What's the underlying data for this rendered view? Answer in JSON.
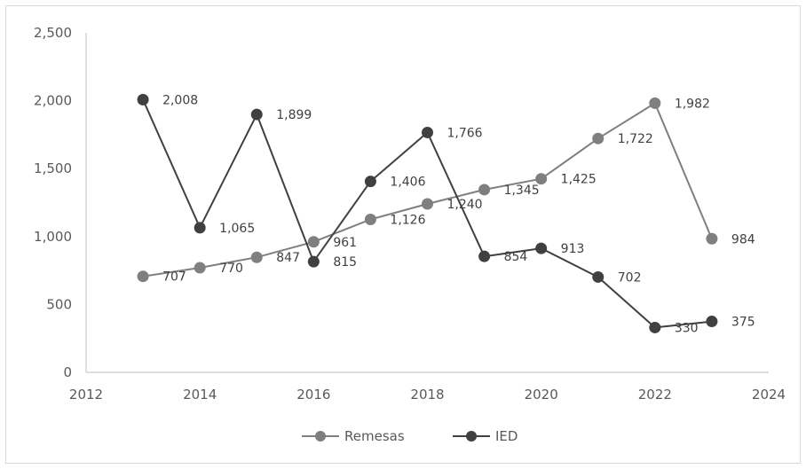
{
  "chart_data": {
    "type": "line",
    "title": "",
    "xlabel": "",
    "ylabel": "",
    "xlim": [
      2012,
      2024
    ],
    "ylim": [
      0,
      2500
    ],
    "x_ticks": [
      "2012",
      "2014",
      "2016",
      "2018",
      "2020",
      "2022",
      "2024"
    ],
    "y_ticks": [
      "0",
      "500",
      "1,000",
      "1,500",
      "2,000",
      "2,500"
    ],
    "grid": false,
    "legend_position": "bottom",
    "x": [
      2013,
      2014,
      2015,
      2016,
      2017,
      2018,
      2019,
      2020,
      2021,
      2022,
      2023
    ],
    "series": [
      {
        "name": "Remesas",
        "color": "#7f7f7f",
        "values": [
          707,
          770,
          847,
          961,
          1126,
          1240,
          1345,
          1425,
          1722,
          1982,
          984
        ],
        "labels": [
          "707",
          "770",
          "847",
          "961",
          "1,126",
          "1,240",
          "1,345",
          "1,425",
          "1,722",
          "1,982",
          "984"
        ]
      },
      {
        "name": "IED",
        "color": "#404040",
        "values": [
          2008,
          1065,
          1899,
          815,
          1406,
          1766,
          854,
          913,
          702,
          330,
          375
        ],
        "labels": [
          "2,008",
          "1,065",
          "1,899",
          "815",
          "1,406",
          "1,766",
          "854",
          "913",
          "702",
          "330",
          "375"
        ]
      }
    ]
  }
}
